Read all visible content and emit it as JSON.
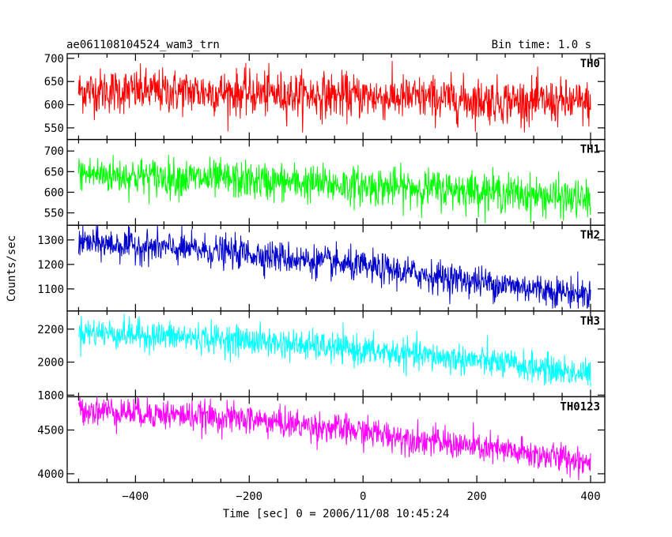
{
  "header": {
    "title": "ae061108104524_wam3_trn",
    "bin_time": "Bin time: 1.0 s"
  },
  "axes": {
    "xlabel": "Time [sec] 0 = 2006/11/08 10:45:24",
    "ylabel": "Counts/sec"
  },
  "chart_data": {
    "type": "line",
    "title": "ae061108104524_wam3_trn",
    "xlabel": "Time [sec] 0 = 2006/11/08 10:45:24",
    "ylabel": "Counts/sec",
    "xlim": [
      -520,
      425
    ],
    "x_ticks": [
      -400,
      -200,
      0,
      200,
      400
    ],
    "x_range_data": [
      -500,
      400
    ],
    "grid": false,
    "bin_time_s": 1.0,
    "panels": [
      {
        "name": "TH0",
        "color": "#ff0000",
        "ylim": [
          525,
          710
        ],
        "y_ticks": [
          550,
          600,
          650,
          700
        ],
        "trend": [
          [
            -500,
            630
          ],
          [
            -300,
            628
          ],
          [
            0,
            618
          ],
          [
            200,
            610
          ],
          [
            400,
            603
          ]
        ],
        "noise_std": 24,
        "range": [
          540,
          715
        ]
      },
      {
        "name": "TH1",
        "color": "#00ff00",
        "ylim": [
          520,
          728
        ],
        "y_ticks": [
          550,
          600,
          650,
          700
        ],
        "trend": [
          [
            -500,
            645
          ],
          [
            -200,
            628
          ],
          [
            0,
            615
          ],
          [
            200,
            605
          ],
          [
            400,
            580
          ]
        ],
        "noise_std": 23,
        "range": [
          525,
          725
        ]
      },
      {
        "name": "TH2",
        "color": "#0000cc",
        "ylim": [
          1010,
          1360
        ],
        "y_ticks": [
          1100,
          1200,
          1300
        ],
        "trend": [
          [
            -500,
            1290
          ],
          [
            -200,
            1245
          ],
          [
            0,
            1190
          ],
          [
            200,
            1130
          ],
          [
            400,
            1075
          ]
        ],
        "noise_std": 32,
        "range": [
          1020,
          1360
        ]
      },
      {
        "name": "TH3",
        "color": "#00ffff",
        "ylim": [
          1790,
          2310
        ],
        "y_ticks": [
          1800,
          2000,
          2200
        ],
        "trend": [
          [
            -500,
            2185
          ],
          [
            -200,
            2130
          ],
          [
            0,
            2070
          ],
          [
            200,
            2010
          ],
          [
            400,
            1925
          ]
        ],
        "noise_std": 45,
        "range": [
          1800,
          2310
        ]
      },
      {
        "name": "TH0123",
        "color": "#ff00ff",
        "ylim": [
          3900,
          4880
        ],
        "y_ticks": [
          4000,
          4500
        ],
        "trend": [
          [
            -500,
            4740
          ],
          [
            -200,
            4620
          ],
          [
            0,
            4480
          ],
          [
            200,
            4300
          ],
          [
            400,
            4140
          ]
        ],
        "noise_std": 85,
        "range": [
          3910,
          4880
        ]
      }
    ]
  }
}
